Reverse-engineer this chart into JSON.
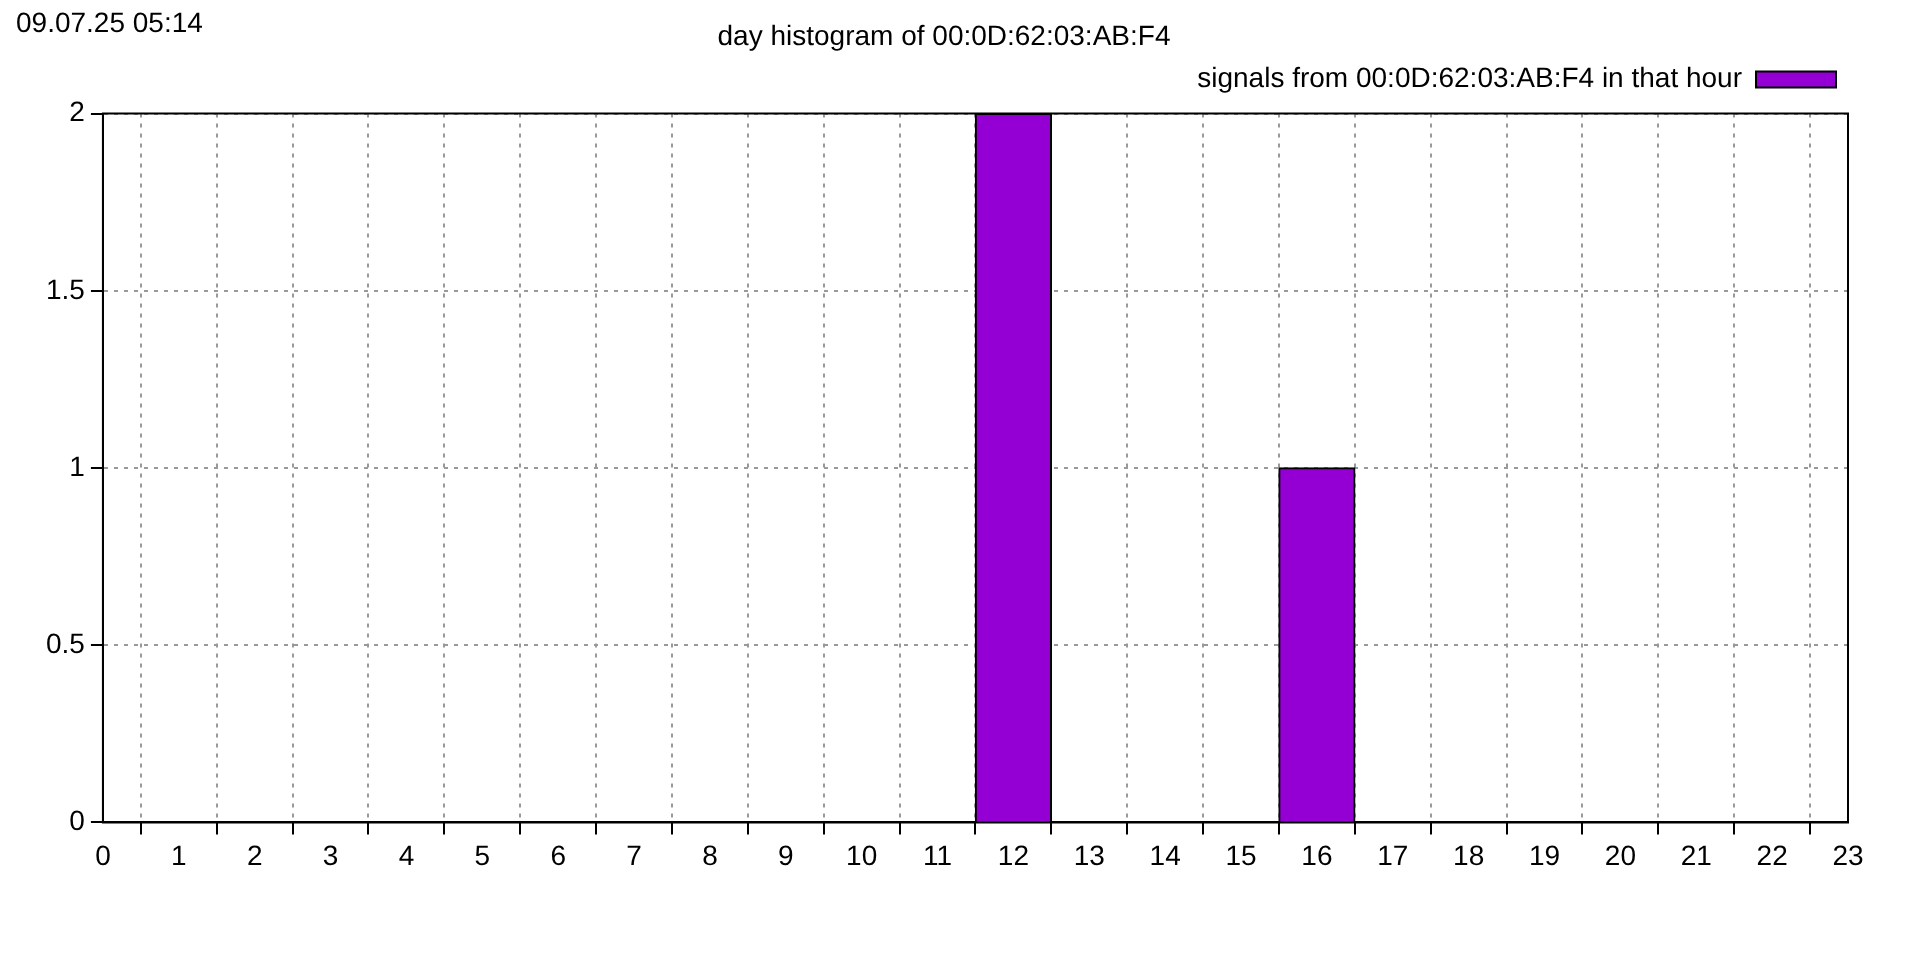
{
  "chart_data": {
    "type": "bar",
    "title": "day histogram of 00:0D:62:03:AB:F4",
    "annotations": [
      "09.07.25 05:14"
    ],
    "x": [
      0,
      1,
      2,
      3,
      4,
      5,
      6,
      7,
      8,
      9,
      10,
      11,
      12,
      13,
      14,
      15,
      16,
      17,
      18,
      19,
      20,
      21,
      22,
      23
    ],
    "series": [
      {
        "name": "signals from 00:0D:62:03:AB:F4 in that hour",
        "color": "#9400d3",
        "values": [
          0,
          0,
          0,
          0,
          0,
          0,
          0,
          0,
          0,
          0,
          0,
          0,
          2,
          0,
          0,
          0,
          1,
          0,
          0,
          0,
          0,
          0,
          0,
          0
        ]
      }
    ],
    "xlim": [
      0,
      23
    ],
    "xticks": [
      0,
      1,
      2,
      3,
      4,
      5,
      6,
      7,
      8,
      9,
      10,
      11,
      12,
      13,
      14,
      15,
      16,
      17,
      18,
      19,
      20,
      21,
      22,
      23
    ],
    "ylim": [
      0,
      2
    ],
    "yticks": [
      0,
      0.5,
      1,
      1.5,
      2
    ],
    "grid": true,
    "legend": "top right"
  }
}
